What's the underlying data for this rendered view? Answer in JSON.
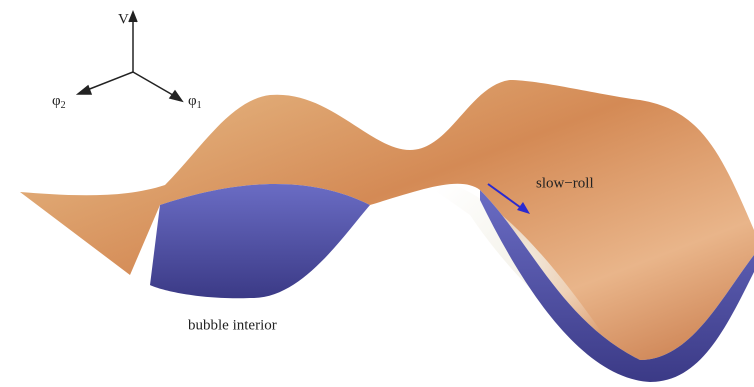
{
  "axes": {
    "vertical": "V",
    "left": {
      "symbol": "φ",
      "subscript": "2"
    },
    "right": {
      "symbol": "φ",
      "subscript": "1"
    }
  },
  "annotations": {
    "slow_roll": "slow−roll",
    "bubble_interior": "bubble interior"
  }
}
